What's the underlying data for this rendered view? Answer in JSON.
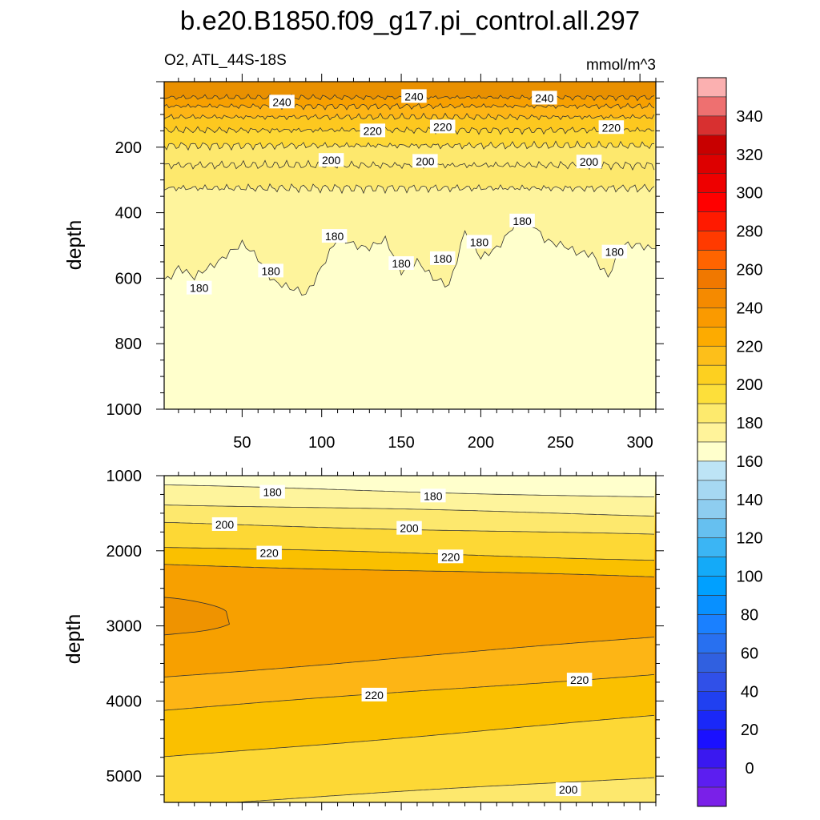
{
  "title": "b.e20.B1850.f09_g17.pi_control.all.297",
  "subtitle_left": "O2, ATL_44S-18S",
  "subtitle_right": "mmol/m^3",
  "colors": {
    "upper_bands": [
      "#e99000",
      "#f7a000",
      "#fdb515",
      "#fdc81f",
      "#fdd835",
      "#fde86d",
      "#fef49c",
      "#ffffcc"
    ],
    "lower_bands": [
      "#fdb515",
      "#fac000",
      "#fdd835",
      "#fde86d",
      "#fef49c",
      "#ffffcc"
    ]
  },
  "chart_data": [
    {
      "type": "contour",
      "ylabel": "depth",
      "xlim": [
        1,
        310
      ],
      "ylim": [
        1000,
        0
      ],
      "x_ticks": [
        50,
        100,
        150,
        200,
        250,
        300
      ],
      "y_ticks": [
        200,
        400,
        600,
        800,
        1000
      ],
      "contour_levels": [
        180,
        190,
        200,
        210,
        220,
        230,
        240,
        250
      ],
      "contour_depths": [
        {
          "level": 250,
          "depth": 48
        },
        {
          "level": 240,
          "depth": 75
        },
        {
          "level": 230,
          "depth": 108
        },
        {
          "level": 220,
          "depth": 148
        },
        {
          "level": 210,
          "depth": 195
        },
        {
          "level": 200,
          "depth": 255
        },
        {
          "level": 190,
          "depth": 325
        }
      ],
      "level_180_depth_by_x": [
        [
          1,
          620
        ],
        [
          10,
          560
        ],
        [
          20,
          600
        ],
        [
          30,
          560
        ],
        [
          40,
          520
        ],
        [
          50,
          500
        ],
        [
          60,
          540
        ],
        [
          70,
          610
        ],
        [
          80,
          640
        ],
        [
          90,
          650
        ],
        [
          100,
          560
        ],
        [
          110,
          480
        ],
        [
          120,
          490
        ],
        [
          130,
          500
        ],
        [
          140,
          490
        ],
        [
          150,
          580
        ],
        [
          160,
          550
        ],
        [
          170,
          610
        ],
        [
          180,
          620
        ],
        [
          190,
          450
        ],
        [
          200,
          540
        ],
        [
          210,
          500
        ],
        [
          220,
          440
        ],
        [
          230,
          430
        ],
        [
          240,
          480
        ],
        [
          250,
          500
        ],
        [
          260,
          530
        ],
        [
          270,
          520
        ],
        [
          280,
          590
        ],
        [
          290,
          500
        ],
        [
          300,
          490
        ],
        [
          310,
          510
        ]
      ],
      "contour_labels": [
        {
          "text": "240",
          "x": 75,
          "depth": 62
        },
        {
          "text": "240",
          "x": 158,
          "depth": 45
        },
        {
          "text": "240",
          "x": 240,
          "depth": 50
        },
        {
          "text": "220",
          "x": 132,
          "depth": 150
        },
        {
          "text": "220",
          "x": 176,
          "depth": 138
        },
        {
          "text": "220",
          "x": 282,
          "depth": 140
        },
        {
          "text": "200",
          "x": 106,
          "depth": 240
        },
        {
          "text": "200",
          "x": 165,
          "depth": 243
        },
        {
          "text": "200",
          "x": 268,
          "depth": 245
        },
        {
          "text": "180",
          "x": 23,
          "depth": 630
        },
        {
          "text": "180",
          "x": 68,
          "depth": 578
        },
        {
          "text": "180",
          "x": 108,
          "depth": 472
        },
        {
          "text": "180",
          "x": 150,
          "depth": 555
        },
        {
          "text": "180",
          "x": 176,
          "depth": 540
        },
        {
          "text": "180",
          "x": 199,
          "depth": 490
        },
        {
          "text": "180",
          "x": 226,
          "depth": 425
        },
        {
          "text": "180",
          "x": 284,
          "depth": 520
        }
      ]
    },
    {
      "type": "contour",
      "ylabel": "depth",
      "xlim": [
        1,
        310
      ],
      "ylim": [
        5350,
        1000
      ],
      "y_ticks": [
        1000,
        2000,
        3000,
        4000,
        5000
      ],
      "contour_levels": [
        180,
        190,
        200,
        210,
        220,
        230
      ],
      "contour_lines": [
        {
          "level": 180,
          "depth_left": 1130,
          "depth_right": 1290
        },
        {
          "level": 190,
          "depth_left": 1380,
          "depth_right": 1530
        },
        {
          "level": 200,
          "depth_left": 1630,
          "depth_right": 1790
        },
        {
          "level": 210,
          "depth_left": 1950,
          "depth_right": 2120
        },
        {
          "level": 220,
          "depth_left": 2180,
          "depth_right": 2350
        },
        {
          "level": 220,
          "depth_left": 3680,
          "depth_right": 3150
        },
        {
          "level": 210,
          "depth_left": 4120,
          "depth_right": 3640
        },
        {
          "level": 200,
          "depth_left": 4750,
          "depth_right": 4200
        },
        {
          "level": 190,
          "depth_left": 5400,
          "depth_right": 5010
        }
      ],
      "high_region": {
        "level": 230,
        "x_range": [
          1,
          42
        ],
        "depth_range": [
          2620,
          3120
        ]
      },
      "contour_labels": [
        {
          "text": "180",
          "x": 69,
          "depth": 1220
        },
        {
          "text": "180",
          "x": 170,
          "depth": 1270
        },
        {
          "text": "200",
          "x": 39,
          "depth": 1650
        },
        {
          "text": "200",
          "x": 155,
          "depth": 1700
        },
        {
          "text": "220",
          "x": 67,
          "depth": 2030
        },
        {
          "text": "220",
          "x": 181,
          "depth": 2080
        },
        {
          "text": "220",
          "x": 133,
          "depth": 3920
        },
        {
          "text": "220",
          "x": 262,
          "depth": 3720
        },
        {
          "text": "200",
          "x": 255,
          "depth": 5180
        }
      ]
    }
  ],
  "colorbar": {
    "labels": [
      "340",
      "320",
      "300",
      "280",
      "260",
      "240",
      "220",
      "200",
      "180",
      "160",
      "140",
      "120",
      "100",
      "80",
      "60",
      "40",
      "20",
      "0"
    ],
    "colors": [
      "#fbb0b0",
      "#ee7070",
      "#d83030",
      "#c80000",
      "#dd0000",
      "#ee0000",
      "#ff0000",
      "#ff1a00",
      "#ff3a00",
      "#ff6400",
      "#f07800",
      "#f58a00",
      "#fa9a00",
      "#fdab00",
      "#fdbf1a",
      "#fdd020",
      "#fddf3a",
      "#fdea6d",
      "#fff39a",
      "#ffffcc",
      "#bde4f6",
      "#a6d8f2",
      "#8ecdf0",
      "#66c0f0",
      "#3bb5f4",
      "#14aaf8",
      "#00a0ff",
      "#0890ff",
      "#1a80ff",
      "#2870f0",
      "#3060e0",
      "#3050e8",
      "#2040f0",
      "#1a28f8",
      "#1a10ff",
      "#3a18f0",
      "#5c1ef0",
      "#7a20e8"
    ]
  }
}
